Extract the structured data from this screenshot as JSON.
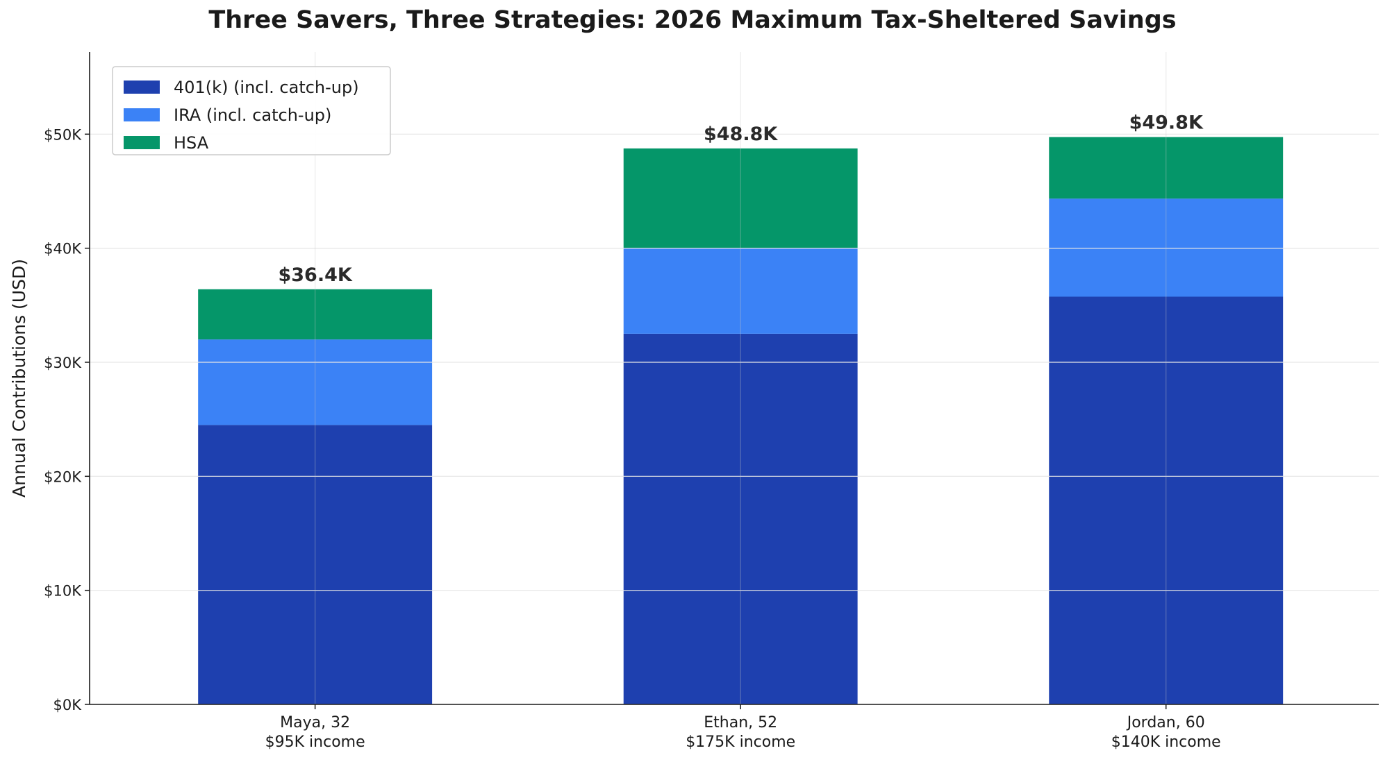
{
  "chart_data": {
    "type": "bar",
    "stacked": true,
    "title": "Three Savers, Three Strategies: 2026 Maximum Tax-Sheltered Savings",
    "xlabel": "",
    "ylabel": "Annual Contributions (USD)",
    "ylim": [
      0,
      57200
    ],
    "yticks": [
      0,
      10000,
      20000,
      30000,
      40000,
      50000
    ],
    "ytick_labels": [
      "$0K",
      "$10K",
      "$20K",
      "$30K",
      "$40K",
      "$50K"
    ],
    "grid": true,
    "legend_position": "top-left",
    "categories": [
      {
        "name": "Maya, 32",
        "sub": "$95K income"
      },
      {
        "name": "Ethan, 52",
        "sub": "$175K income"
      },
      {
        "name": "Jordan, 60",
        "sub": "$140K income"
      }
    ],
    "series": [
      {
        "name": "401(k) (incl. catch-up)",
        "color": "#1e40af",
        "values": [
          24500,
          32500,
          35750
        ]
      },
      {
        "name": "IRA (incl. catch-up)",
        "color": "#3b82f6",
        "values": [
          7500,
          7500,
          8600
        ]
      },
      {
        "name": "HSA",
        "color": "#059669",
        "values": [
          4400,
          8750,
          5400
        ]
      }
    ],
    "total_labels": [
      "$36.4K",
      "$48.8K",
      "$49.8K"
    ]
  }
}
